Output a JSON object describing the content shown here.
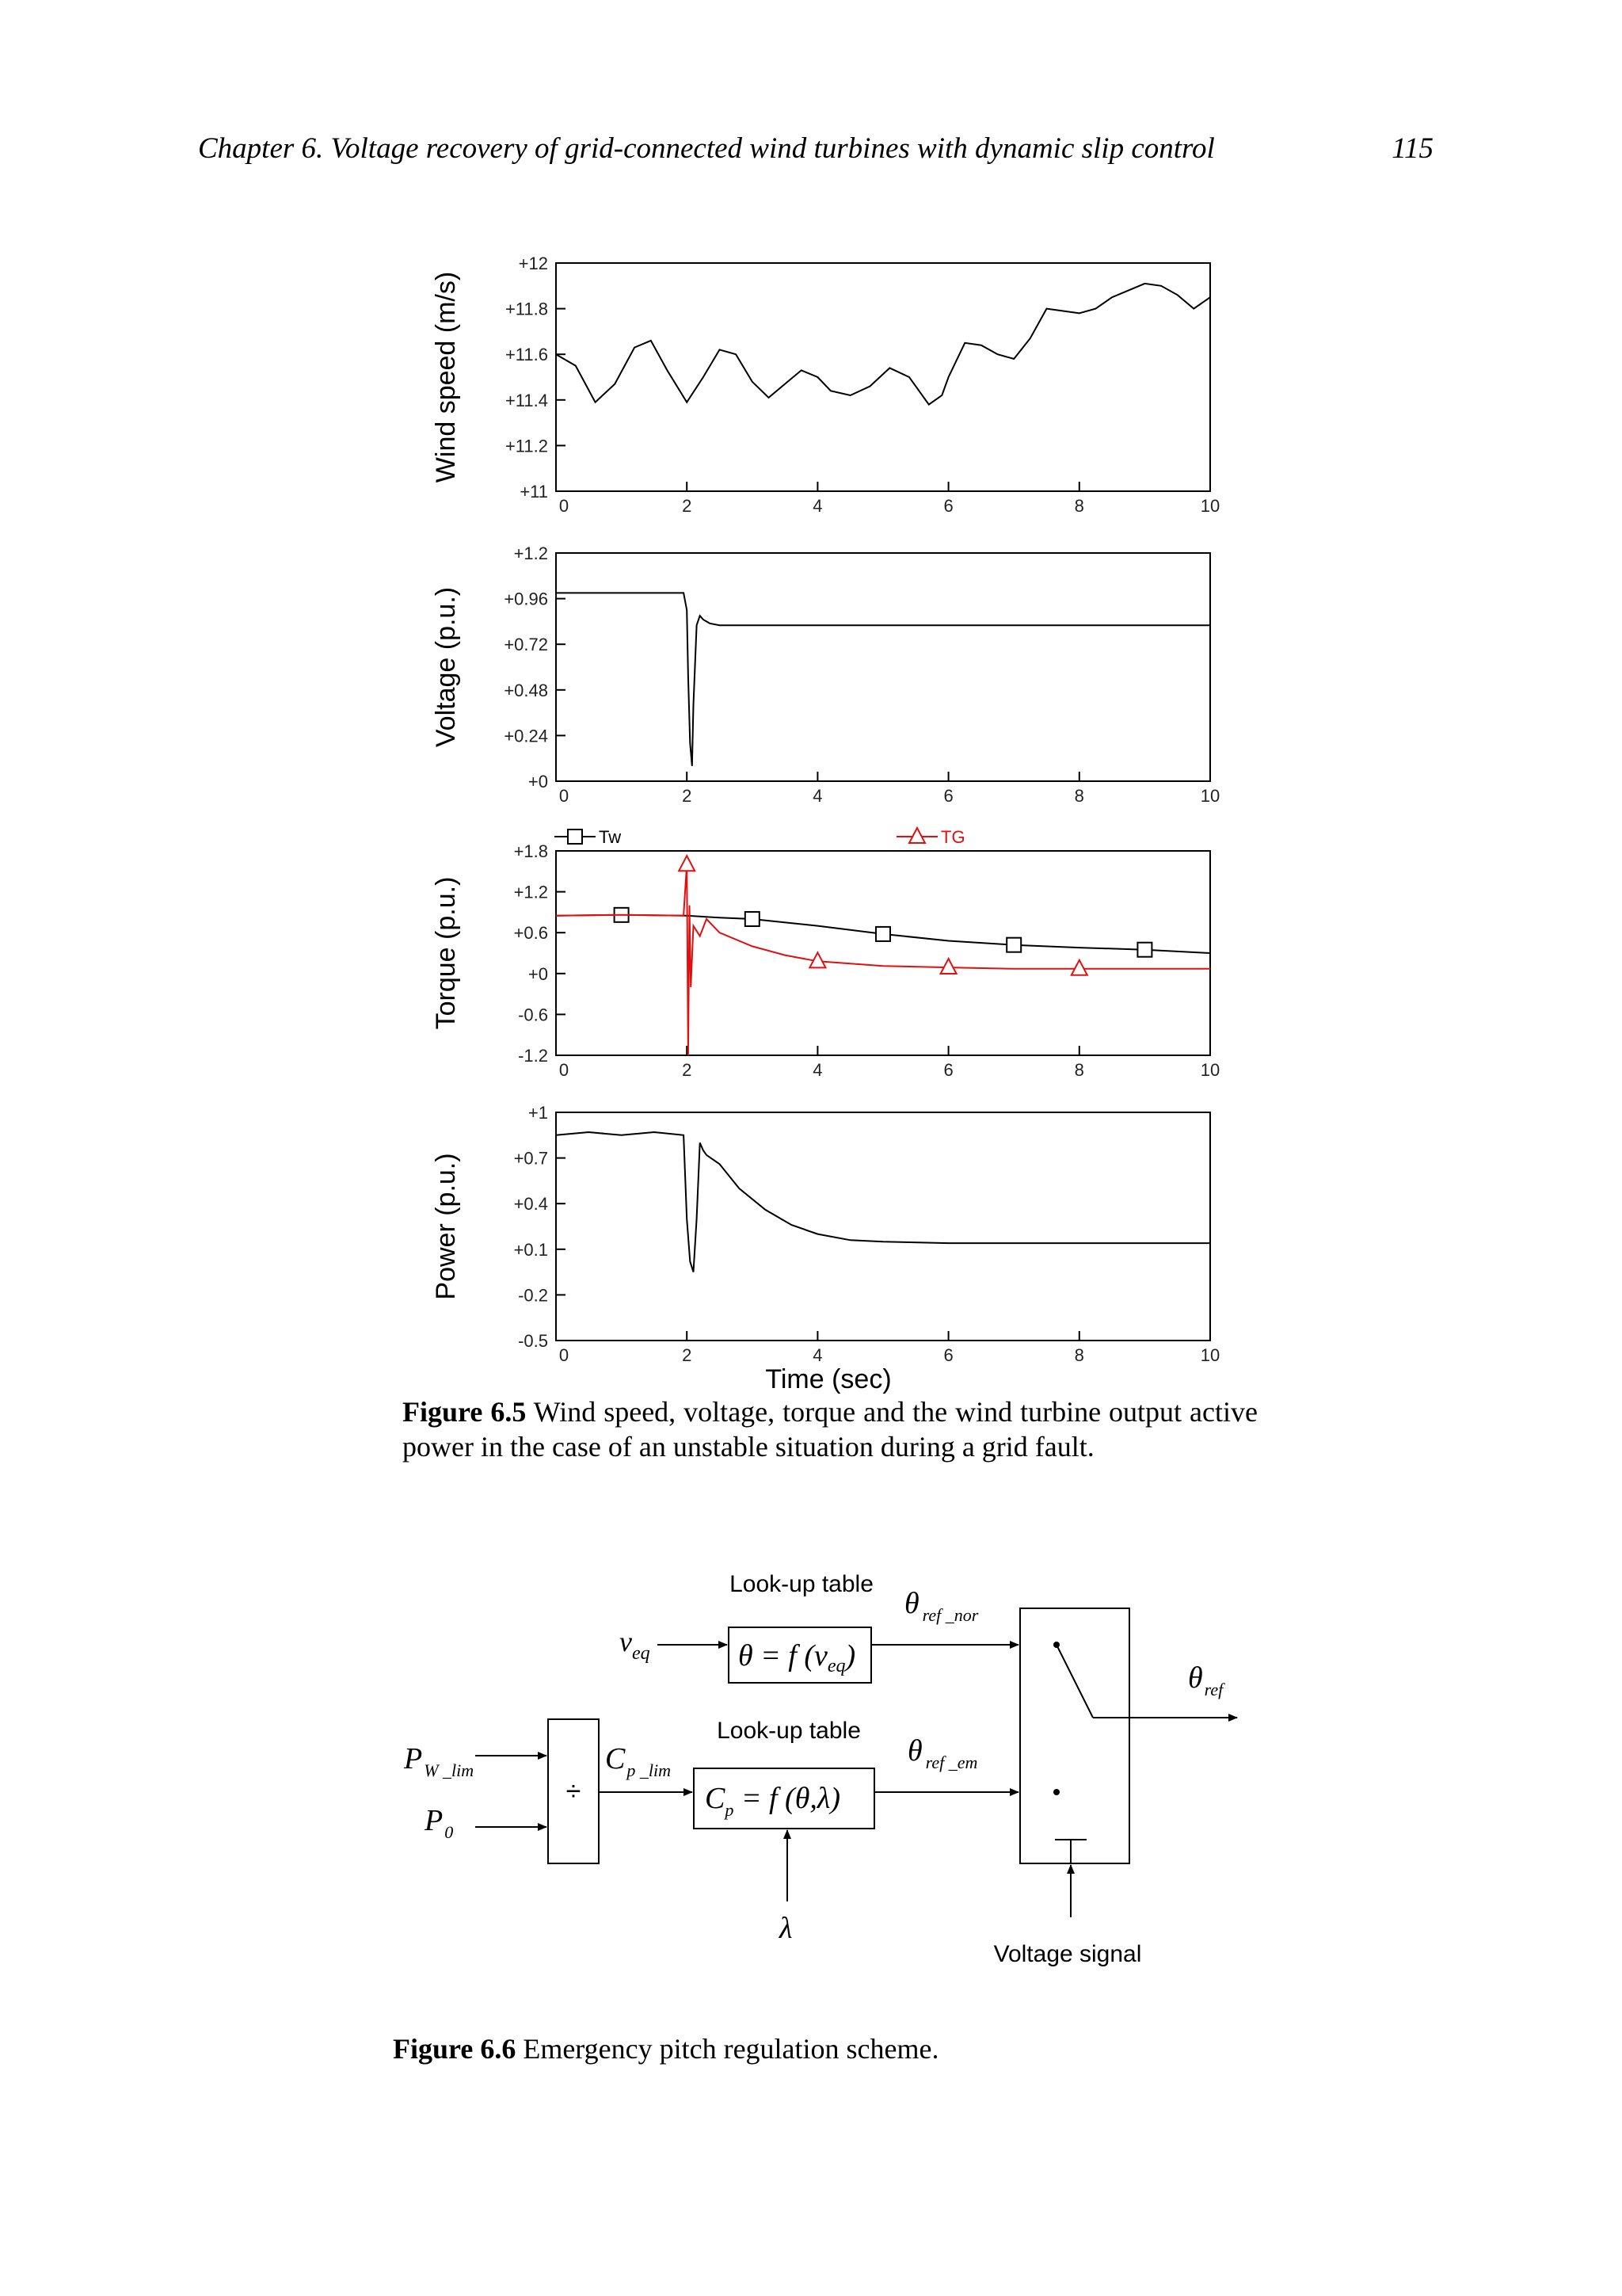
{
  "header": {
    "title": "Chapter 6. Voltage recovery of grid-connected wind turbines with dynamic slip control",
    "page_number": "115"
  },
  "figure1": {
    "caption_label": "Figure 6.5",
    "caption_text": " Wind speed, voltage, torque and the wind turbine output active power in the case of an unstable situation during a grid fault.",
    "xlabel": "Time (sec)"
  },
  "chart_data": [
    {
      "type": "line",
      "ylabel": "Wind speed (m/s)",
      "xlim": [
        0,
        10
      ],
      "ylim": [
        11,
        12
      ],
      "xticks": [
        "0",
        "2",
        "4",
        "6",
        "8",
        "10"
      ],
      "yticks": [
        "+11",
        "+11.2",
        "+11.4",
        "+11.6",
        "+11.8",
        "+12"
      ],
      "series": [
        {
          "color": "#000000",
          "x": [
            0,
            0.3,
            0.6,
            0.9,
            1.2,
            1.45,
            1.7,
            2.0,
            2.25,
            2.5,
            2.75,
            3.0,
            3.25,
            3.5,
            3.75,
            4.0,
            4.2,
            4.5,
            4.8,
            5.1,
            5.4,
            5.7,
            5.9,
            6.0,
            6.25,
            6.5,
            6.75,
            7.0,
            7.25,
            7.5,
            7.75,
            8.0,
            8.25,
            8.5,
            8.75,
            9.0,
            9.25,
            9.5,
            9.75,
            10.0
          ],
          "y": [
            11.6,
            11.55,
            11.39,
            11.47,
            11.63,
            11.66,
            11.53,
            11.39,
            11.5,
            11.62,
            11.6,
            11.48,
            11.41,
            11.47,
            11.53,
            11.5,
            11.44,
            11.42,
            11.46,
            11.54,
            11.5,
            11.38,
            11.42,
            11.5,
            11.65,
            11.64,
            11.6,
            11.58,
            11.67,
            11.8,
            11.79,
            11.78,
            11.8,
            11.85,
            11.88,
            11.91,
            11.9,
            11.86,
            11.8,
            11.85
          ]
        }
      ]
    },
    {
      "type": "line",
      "ylabel": "Voltage (p.u.)",
      "xlim": [
        0,
        10
      ],
      "ylim": [
        0,
        1.2
      ],
      "xticks": [
        "0",
        "2",
        "4",
        "6",
        "8",
        "10"
      ],
      "yticks": [
        "+0",
        "+0.24",
        "+0.48",
        "+0.72",
        "+0.96",
        "+1.2"
      ],
      "series": [
        {
          "color": "#000000",
          "x": [
            0,
            1.0,
            1.95,
            2.0,
            2.02,
            2.05,
            2.08,
            2.1,
            2.15,
            2.2,
            2.25,
            2.35,
            2.5,
            3.0,
            4.0,
            6.0,
            8.0,
            10.0
          ],
          "y": [
            0.99,
            0.99,
            0.99,
            0.9,
            0.55,
            0.2,
            0.08,
            0.4,
            0.82,
            0.87,
            0.85,
            0.83,
            0.82,
            0.82,
            0.82,
            0.82,
            0.82,
            0.82
          ]
        }
      ]
    },
    {
      "type": "line",
      "ylabel": "Torque (p.u.)",
      "xlim": [
        0,
        10
      ],
      "ylim": [
        -1.2,
        1.8
      ],
      "xticks": [
        "0",
        "2",
        "4",
        "6",
        "8",
        "10"
      ],
      "yticks": [
        "-1.2",
        "-0.6",
        "+0",
        "+0.6",
        "+1.2",
        "+1.8"
      ],
      "legend": [
        "Tw",
        "TG"
      ],
      "series": [
        {
          "name": "Tw",
          "color": "#000000",
          "marker": "square",
          "x": [
            0,
            1,
            2,
            2.5,
            3,
            4,
            5,
            6,
            7,
            8,
            9,
            10
          ],
          "y": [
            0.85,
            0.86,
            0.85,
            0.82,
            0.8,
            0.7,
            0.58,
            0.48,
            0.42,
            0.38,
            0.35,
            0.3
          ],
          "markers_x": [
            1,
            3,
            5,
            7,
            9
          ]
        },
        {
          "name": "TG",
          "color": "#e01010",
          "marker": "triangle",
          "x": [
            0,
            1,
            1.95,
            2.0,
            2.02,
            2.04,
            2.06,
            2.1,
            2.2,
            2.3,
            2.5,
            3.0,
            3.5,
            4.0,
            5.0,
            6.0,
            7.0,
            8.0,
            9.0,
            10.0
          ],
          "y": [
            0.85,
            0.86,
            0.85,
            1.6,
            -1.2,
            1.0,
            -0.2,
            0.7,
            0.55,
            0.8,
            0.6,
            0.4,
            0.27,
            0.18,
            0.11,
            0.09,
            0.07,
            0.07,
            0.07,
            0.07
          ],
          "markers_x": [
            2,
            4,
            6,
            8
          ]
        }
      ]
    },
    {
      "type": "line",
      "ylabel": "Power (p.u.)",
      "xlim": [
        0,
        10
      ],
      "ylim": [
        -0.5,
        1
      ],
      "xticks": [
        "0",
        "2",
        "4",
        "6",
        "8",
        "10"
      ],
      "yticks": [
        "-0.5",
        "-0.2",
        "+0.1",
        "+0.4",
        "+0.7",
        "+1"
      ],
      "series": [
        {
          "color": "#000000",
          "x": [
            0,
            0.5,
            1.0,
            1.5,
            1.95,
            2.0,
            2.05,
            2.1,
            2.15,
            2.2,
            2.25,
            2.3,
            2.5,
            2.8,
            3.2,
            3.6,
            4.0,
            4.5,
            5.0,
            6.0,
            7.0,
            8.0,
            10.0
          ],
          "y": [
            0.85,
            0.87,
            0.85,
            0.87,
            0.85,
            0.3,
            0.02,
            -0.05,
            0.3,
            0.8,
            0.75,
            0.72,
            0.66,
            0.5,
            0.36,
            0.26,
            0.2,
            0.16,
            0.15,
            0.14,
            0.14,
            0.14,
            0.14
          ]
        }
      ]
    }
  ],
  "diagram": {
    "lookup1_title": "Look-up table",
    "lookup1_func": "θ = f (v",
    "lookup1_func_sub": "eq",
    "lookup1_func_end": ")",
    "veq": "v",
    "veq_sub": "eq",
    "theta_nor": "θ",
    "theta_nor_sub": "ref _nor",
    "lookup2_title": "Look-up table",
    "lookup2_func": "C",
    "lookup2_func_sub": "p",
    "lookup2_func_rest": " = f (θ,λ)",
    "cp_lim": "C",
    "cp_lim_sub": "p _lim",
    "theta_em": "θ",
    "theta_em_sub": "ref _em",
    "pw_lim": "P",
    "pw_lim_sub": "W _lim",
    "p0": "P",
    "p0_sub": "0",
    "divide": "÷",
    "lambda": "λ",
    "theta_ref": "θ",
    "theta_ref_sub": "ref",
    "voltage_signal": "Voltage signal"
  },
  "figure2": {
    "caption_label": "Figure 6.6",
    "caption_text": " Emergency pitch regulation scheme."
  }
}
